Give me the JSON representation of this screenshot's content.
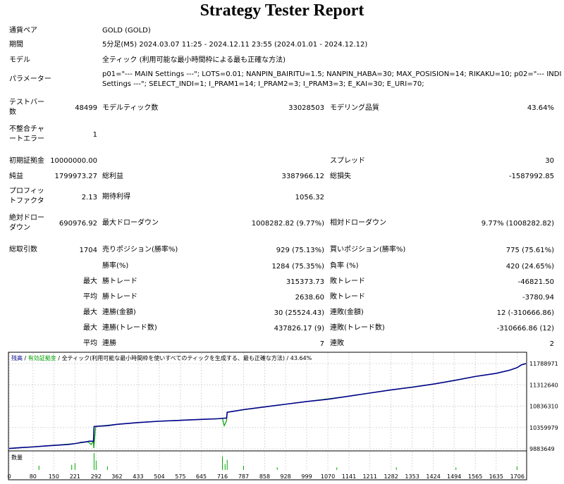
{
  "title": "Strategy Tester Report",
  "info": {
    "symbol_label": "通貨ペア",
    "symbol_value": "GOLD (GOLD)",
    "period_label": "期間",
    "period_value": "5分足(M5) 2024.03.07 11:25 - 2024.12.11 23:55 (2024.01.01 - 2024.12.12)",
    "model_label": "モデル",
    "model_value": "全ティック (利用可能な最小時間枠による最も正確な方法)",
    "params_label": "パラメーター",
    "params_line1": "p01=\"--- MAIN Settings ---\"; LOTS=0.01; NANPIN_BAIRITU=1.5; NANPIN_HABA=30; MAX_POSISION=14; RIKAKU=10; p02=\"--- INDI",
    "params_line2": "Settings ---\"; SELECT_INDI=1; I_PRAM1=14; I_PRAM2=3; I_PRAM3=3; E_KAI=30; E_URI=70;"
  },
  "stats": {
    "bars_label_1": "テストバー",
    "bars_label_2": "数",
    "bars_value": "48499",
    "ticks_label": "モデルティック数",
    "ticks_value": "33028503",
    "quality_label": "モデリング品質",
    "quality_value": "43.64%",
    "mismatch_label_1": "不整合チャ",
    "mismatch_label_2": "ートエラー",
    "mismatch_value": "1",
    "deposit_label": "初期証拠金",
    "deposit_value": "10000000.00",
    "spread_label": "スプレッド",
    "spread_value": "30",
    "net_label": "純益",
    "net_value": "1799973.27",
    "gross_profit_label": "総利益",
    "gross_profit_value": "3387966.12",
    "gross_loss_label": "総損失",
    "gross_loss_value": "-1587992.85",
    "pf_label_1": "プロフィッ",
    "pf_label_2": "トファクタ",
    "pf_value": "2.13",
    "payoff_label": "期待利得",
    "payoff_value": "1056.32",
    "abs_dd_label_1": "絶対ドロー",
    "abs_dd_label_2": "ダウン",
    "abs_dd_value": "690976.92",
    "max_dd_label": "最大ドローダウン",
    "max_dd_value": "1008282.82 (9.77%)",
    "rel_dd_label": "相対ドローダウン",
    "rel_dd_value": "9.77% (1008282.82)",
    "trades_label": "総取引数",
    "trades_value": "1704",
    "short_label": "売りポジション(勝率%)",
    "short_value": "929 (75.13%)",
    "long_label": "買いポジション(勝率%)",
    "long_value": "775 (75.61%)",
    "win_rate_label": "勝率(%)",
    "win_rate_value": "1284 (75.35%)",
    "loss_rate_label": "負率 (%)",
    "loss_rate_value": "420 (24.65%)",
    "largest_prefix": "最大",
    "largest_win_label": "勝トレード",
    "largest_win_value": "315373.73",
    "largest_loss_label": "敗トレード",
    "largest_loss_value": "-46821.50",
    "average_prefix": "平均",
    "average_win_label": "勝トレード",
    "average_win_value": "2638.60",
    "average_loss_label": "敗トレード",
    "average_loss_value": "-3780.94",
    "max_cons_prefix": "最大",
    "max_cons_wins_label": "連勝(金額)",
    "max_cons_wins_value": "30 (25524.43)",
    "max_cons_losses_label": "連敗(金額)",
    "max_cons_losses_value": "12 (-310666.86)",
    "max_cons_profit_prefix": "最大",
    "max_cons_profit_label": "連勝(トレード数)",
    "max_cons_profit_value": "437826.17 (9)",
    "max_cons_loss_label": "連敗(トレード数)",
    "max_cons_loss_value": "-310666.86 (12)",
    "avg_cons_prefix": "平均",
    "avg_cons_wins_label": "連勝",
    "avg_cons_wins_value": "7",
    "avg_cons_losses_label": "連敗",
    "avg_cons_losses_value": "2"
  },
  "colors": {
    "balance": "#00008b",
    "equity": "#00a000",
    "volume": "#00aa00",
    "grid": "#d8d8d8"
  },
  "chart_data": {
    "type": "line",
    "legend_balance": "残高",
    "legend_sep": " / ",
    "legend_equity": "有効証拠金",
    "legend_rest": " / 全ティック(利用可能な最小時間枠を使いすべてのティックを生成する、最も正確な方法) / 43.64%",
    "volume_label": "数量",
    "y_ticks": [
      9883649,
      10359979,
      10836310,
      11312640,
      11788971
    ],
    "ylim": [
      9883649,
      11900000
    ],
    "x_ticks": [
      0,
      80,
      150,
      221,
      292,
      362,
      433,
      504,
      575,
      645,
      716,
      787,
      858,
      928,
      999,
      1070,
      1141,
      1211,
      1282,
      1353,
      1424,
      1494,
      1565,
      1635,
      1706
    ],
    "xlim": [
      0,
      1735
    ],
    "series": [
      {
        "name": "残高",
        "x": [
          0,
          40,
          80,
          120,
          150,
          200,
          221,
          230,
          240,
          260,
          270,
          283,
          285,
          292,
          330,
          362,
          433,
          504,
          575,
          645,
          700,
          716,
          730,
          732,
          760,
          787,
          858,
          928,
          999,
          1070,
          1141,
          1211,
          1282,
          1353,
          1424,
          1494,
          1565,
          1635,
          1680,
          1706,
          1720,
          1735
        ],
        "y": [
          9890000,
          9910000,
          9925000,
          9945000,
          9960000,
          9980000,
          10000000,
          10010000,
          10025000,
          10040000,
          10055000,
          10050000,
          10380000,
          10385000,
          10400000,
          10430000,
          10470000,
          10500000,
          10520000,
          10540000,
          10555000,
          10565000,
          10570000,
          10700000,
          10730000,
          10760000,
          10820000,
          10880000,
          10940000,
          10990000,
          11060000,
          11130000,
          11200000,
          11260000,
          11330000,
          11410000,
          11500000,
          11570000,
          11640000,
          11700000,
          11760000,
          11788971
        ]
      },
      {
        "name": "有効証拠金",
        "x": [
          0,
          150,
          221,
          265,
          275,
          283,
          284,
          290,
          292,
          362,
          433,
          504,
          575,
          645,
          700,
          716,
          722,
          726,
          730,
          732,
          760,
          858,
          999,
          1141,
          1282,
          1424,
          1565,
          1635,
          1680,
          1706,
          1720,
          1735
        ],
        "y": [
          9890000,
          9960000,
          10000000,
          10040000,
          9980000,
          10050000,
          9900000,
          10340000,
          10385000,
          10430000,
          10470000,
          10500000,
          10520000,
          10540000,
          10555000,
          10565000,
          10400000,
          10450000,
          10520000,
          10700000,
          10730000,
          10820000,
          10940000,
          11060000,
          11200000,
          11330000,
          11500000,
          11570000,
          11640000,
          11700000,
          11760000,
          11788971
        ]
      }
    ],
    "volume": {
      "x": [
        100,
        210,
        221,
        285,
        292,
        330,
        716,
        725,
        732,
        787,
        900,
        1100,
        1300,
        1500,
        1705
      ],
      "y": [
        0.25,
        0.3,
        0.4,
        1.0,
        0.55,
        0.2,
        0.8,
        0.35,
        0.6,
        0.25,
        0.15,
        0.15,
        0.15,
        0.15,
        0.2
      ]
    }
  }
}
